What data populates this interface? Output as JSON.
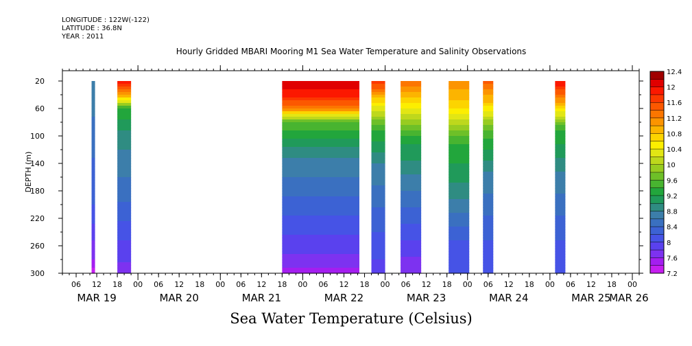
{
  "header": {
    "longitude": "LONGITUDE : 122W(-122)",
    "latitude": "LATITUDE : 36.8N",
    "year": "YEAR : 2011"
  },
  "chart_data": {
    "type": "heatmap",
    "title": "Hourly Gridded MBARI Mooring M1 Sea Water Temperature and Salinity Observations",
    "variable_label": "Sea Water Temperature (Celsius)",
    "ylabel": "DEPTH (m)",
    "x_unit": "hours",
    "xlim_hours": [
      2,
      170
    ],
    "ylim": [
      300,
      5
    ],
    "y_ticks": [
      20,
      60,
      100,
      140,
      180,
      220,
      260,
      300
    ],
    "x_tick_hours": [
      6,
      12,
      18,
      24,
      30,
      36,
      42,
      48,
      54,
      60,
      66,
      72,
      78,
      84,
      90,
      96,
      102,
      108,
      114,
      120,
      126,
      132,
      138,
      144,
      150,
      156,
      162,
      168
    ],
    "x_tick_labels": [
      "06",
      "12",
      "18",
      "00",
      "06",
      "12",
      "18",
      "00",
      "06",
      "12",
      "18",
      "00",
      "06",
      "12",
      "18",
      "00",
      "06",
      "12",
      "18",
      "00",
      "06",
      "12",
      "18",
      "00",
      "06",
      "12",
      "18",
      "00"
    ],
    "day_labels": [
      {
        "text": "MAR 19",
        "hour": 12
      },
      {
        "text": "MAR 20",
        "hour": 36
      },
      {
        "text": "MAR 21",
        "hour": 60
      },
      {
        "text": "MAR 22",
        "hour": 84
      },
      {
        "text": "MAR 23",
        "hour": 108
      },
      {
        "text": "MAR 24",
        "hour": 132
      },
      {
        "text": "MAR 25",
        "hour": 156
      },
      {
        "text": "MAR 26",
        "hour": 167
      }
    ],
    "x_origin": "MAR 19 00:00 (hour 0)",
    "colorbar": {
      "levels": [
        7.2,
        7.4,
        7.6,
        7.8,
        8.0,
        8.2,
        8.4,
        8.6,
        8.8,
        9.0,
        9.2,
        9.4,
        9.6,
        9.8,
        10.0,
        10.2,
        10.4,
        10.6,
        10.8,
        11.0,
        11.2,
        11.4,
        11.6,
        11.8,
        12.0,
        12.2,
        12.4
      ],
      "labels": [
        "7.2",
        "7.6",
        "8",
        "8.4",
        "8.8",
        "9.2",
        "9.6",
        "10",
        "10.4",
        "10.8",
        "11.2",
        "11.6",
        "12",
        "12.4"
      ],
      "colors": [
        "#c61ef0",
        "#a41ef0",
        "#7d32f0",
        "#5a41ee",
        "#4653e6",
        "#3c62d4",
        "#3a70c0",
        "#3c7eaa",
        "#2f8c82",
        "#209a5a",
        "#22a63c",
        "#48b430",
        "#6ec028",
        "#98cc20",
        "#bed81c",
        "#e2e614",
        "#fcee00",
        "#fcd400",
        "#fcb400",
        "#fc9400",
        "#fc7600",
        "#fc5800",
        "#fc3800",
        "#fc1800",
        "#e00000",
        "#a00000"
      ]
    },
    "data_segments": [
      {
        "hour_start": 10.5,
        "hour_end": 11.5,
        "values_by_depth": [
          [
            20,
            8.8
          ],
          [
            40,
            8.7
          ],
          [
            100,
            8.5
          ],
          [
            200,
            8.2
          ],
          [
            280,
            7.6
          ],
          [
            300,
            7.2
          ]
        ]
      },
      {
        "hour_start": 18,
        "hour_end": 22,
        "values_by_depth": [
          [
            20,
            12.1
          ],
          [
            40,
            11.0
          ],
          [
            60,
            9.4
          ],
          [
            100,
            8.9
          ],
          [
            180,
            8.5
          ],
          [
            250,
            8.0
          ],
          [
            300,
            7.7
          ]
        ]
      },
      {
        "hour_start": 66,
        "hour_end": 88.5,
        "values_by_depth": [
          [
            20,
            12.1
          ],
          [
            40,
            11.9
          ],
          [
            60,
            11.2
          ],
          [
            80,
            9.6
          ],
          [
            120,
            8.9
          ],
          [
            200,
            8.3
          ],
          [
            260,
            7.9
          ],
          [
            300,
            7.5
          ]
        ]
      },
      {
        "hour_start": 92,
        "hour_end": 96,
        "values_by_depth": [
          [
            20,
            11.8
          ],
          [
            50,
            10.6
          ],
          [
            90,
            9.4
          ],
          [
            140,
            8.8
          ],
          [
            220,
            8.3
          ],
          [
            300,
            7.9
          ]
        ]
      },
      {
        "hour_start": 100.5,
        "hour_end": 106.5,
        "values_by_depth": [
          [
            20,
            11.4
          ],
          [
            60,
            10.4
          ],
          [
            110,
            9.2
          ],
          [
            170,
            8.7
          ],
          [
            240,
            8.1
          ],
          [
            300,
            7.6
          ]
        ]
      },
      {
        "hour_start": 114.5,
        "hour_end": 120.5,
        "values_by_depth": [
          [
            20,
            11.2
          ],
          [
            60,
            10.6
          ],
          [
            110,
            9.4
          ],
          [
            180,
            8.9
          ],
          [
            250,
            8.2
          ],
          [
            300,
            8.0
          ]
        ]
      },
      {
        "hour_start": 124.5,
        "hour_end": 127.5,
        "values_by_depth": [
          [
            20,
            11.5
          ],
          [
            50,
            10.8
          ],
          [
            90,
            9.6
          ],
          [
            150,
            8.8
          ],
          [
            230,
            8.3
          ],
          [
            300,
            8.0
          ]
        ]
      },
      {
        "hour_start": 145.5,
        "hour_end": 148.5,
        "values_by_depth": [
          [
            20,
            12.0
          ],
          [
            50,
            11.0
          ],
          [
            90,
            9.4
          ],
          [
            150,
            8.8
          ],
          [
            230,
            8.3
          ],
          [
            300,
            8.0
          ]
        ]
      }
    ]
  }
}
